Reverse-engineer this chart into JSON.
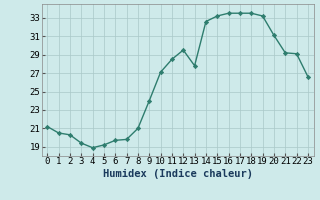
{
  "x": [
    0,
    1,
    2,
    3,
    4,
    5,
    6,
    7,
    8,
    9,
    10,
    11,
    12,
    13,
    14,
    15,
    16,
    17,
    18,
    19,
    20,
    21,
    22,
    23
  ],
  "y": [
    21.2,
    20.5,
    20.3,
    19.4,
    18.9,
    19.2,
    19.7,
    19.8,
    21.0,
    24.0,
    27.1,
    28.5,
    29.5,
    27.8,
    32.6,
    33.2,
    33.5,
    33.5,
    33.5,
    33.2,
    31.1,
    29.2,
    29.1,
    26.6
  ],
  "xlabel": "Humidex (Indice chaleur)",
  "ylim": [
    18.0,
    34.5
  ],
  "xlim": [
    -0.5,
    23.5
  ],
  "yticks": [
    19,
    21,
    23,
    25,
    27,
    29,
    31,
    33
  ],
  "xticks": [
    0,
    1,
    2,
    3,
    4,
    5,
    6,
    7,
    8,
    9,
    10,
    11,
    12,
    13,
    14,
    15,
    16,
    17,
    18,
    19,
    20,
    21,
    22,
    23
  ],
  "line_color": "#2e7d6e",
  "marker": "D",
  "marker_size": 2.2,
  "bg_color": "#ceeaea",
  "grid_color": "#aac8c8",
  "xlabel_fontsize": 7.5,
  "tick_fontsize": 6.5
}
